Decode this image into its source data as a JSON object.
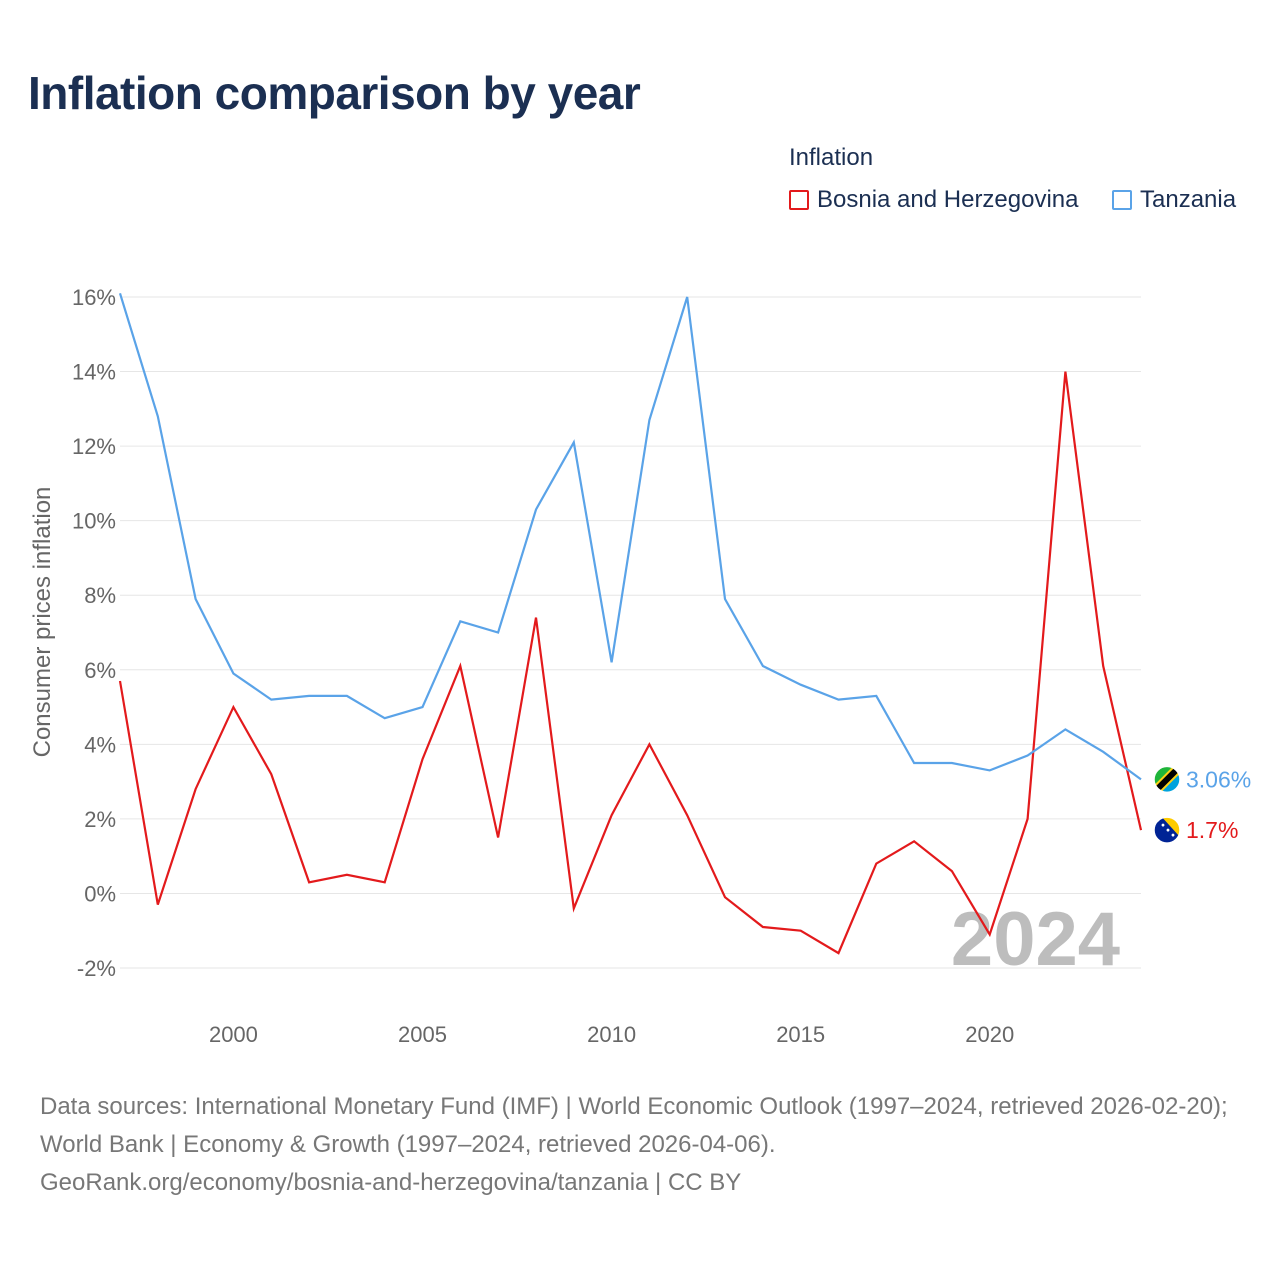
{
  "title": "Inflation comparison by year",
  "legend": {
    "title": "Inflation",
    "items": [
      {
        "label": "Bosnia and Herzegovina",
        "color": "#e31a1c"
      },
      {
        "label": "Tanzania",
        "color": "#5aa3e8"
      }
    ]
  },
  "chart_data": {
    "type": "line",
    "title": "Inflation comparison by year",
    "xlabel": "",
    "ylabel": "Consumer prices inflation",
    "xlim": [
      1997,
      2024
    ],
    "ylim": [
      -2,
      16
    ],
    "xticks": [
      2000,
      2005,
      2010,
      2015,
      2020
    ],
    "yticks": [
      -2,
      0,
      2,
      4,
      6,
      8,
      10,
      12,
      14,
      16
    ],
    "ytick_labels": [
      "-2%",
      "0%",
      "2%",
      "4%",
      "6%",
      "8%",
      "10%",
      "12%",
      "14%",
      "16%"
    ],
    "x": [
      1997,
      1998,
      1999,
      2000,
      2001,
      2002,
      2003,
      2004,
      2005,
      2006,
      2007,
      2008,
      2009,
      2010,
      2011,
      2012,
      2013,
      2014,
      2015,
      2016,
      2017,
      2018,
      2019,
      2020,
      2021,
      2022,
      2023,
      2024
    ],
    "series": [
      {
        "name": "Bosnia and Herzegovina",
        "color": "#e31a1c",
        "values": [
          5.7,
          -0.3,
          2.8,
          5.0,
          3.2,
          0.3,
          0.5,
          0.3,
          3.6,
          6.1,
          1.5,
          7.4,
          -0.4,
          2.1,
          4.0,
          2.1,
          -0.1,
          -0.9,
          -1.0,
          -1.6,
          0.8,
          1.4,
          0.6,
          -1.1,
          2.0,
          14.0,
          6.1,
          1.7
        ],
        "end_label": "1.7%"
      },
      {
        "name": "Tanzania",
        "color": "#5aa3e8",
        "values": [
          16.1,
          12.8,
          7.9,
          5.9,
          5.2,
          5.3,
          5.3,
          4.7,
          5.0,
          7.3,
          7.0,
          10.3,
          12.1,
          6.2,
          12.7,
          16.0,
          7.9,
          6.1,
          5.6,
          5.2,
          5.3,
          3.5,
          3.5,
          3.3,
          3.7,
          4.4,
          3.8,
          3.06
        ],
        "end_label": "3.06%"
      }
    ],
    "year_watermark": "2024",
    "grid": true,
    "legend_position": "top-right"
  },
  "footer": {
    "source_text": "Data sources: International Monetary Fund (IMF) | World Economic Outlook (1997–2024, retrieved 2026-02-20); World Bank | Economy & Growth (1997–2024, retrieved 2026-04-06).",
    "attribution": "GeoRank.org/economy/bosnia-and-herzegovina/tanzania | CC BY"
  },
  "colors": {
    "title": "#1b2f52",
    "axis_text": "#666666",
    "grid": "#e6e6e6",
    "watermark": "#bdbdbd"
  }
}
